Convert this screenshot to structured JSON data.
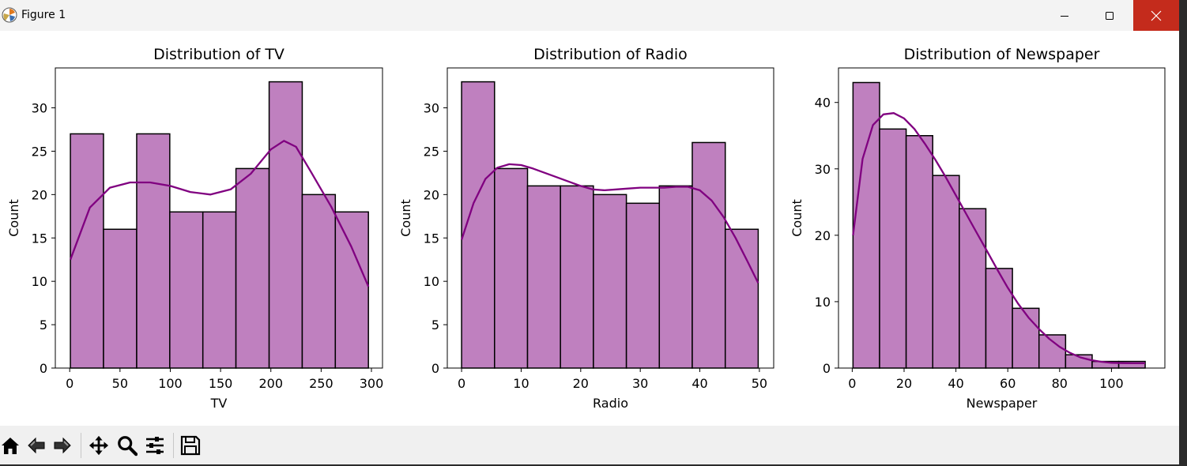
{
  "window": {
    "title": "Figure 1",
    "controls": {
      "minimize": "minimize",
      "maximize": "maximize",
      "close": "close"
    }
  },
  "toolbar": {
    "buttons": [
      "home-icon",
      "back-icon",
      "forward-icon",
      "pan-icon",
      "zoom-icon",
      "configure-subplots-icon",
      "save-icon"
    ]
  },
  "colors": {
    "bar_fill": "#bf80bf",
    "bar_edge": "#000000",
    "kde": "#800080",
    "close_button": "#c42b1c"
  },
  "chart_data": [
    {
      "type": "bar",
      "title": "Distribution of TV",
      "xlabel": "TV",
      "ylabel": "Count",
      "xlim": [
        -14.3,
        311
      ],
      "ylim": [
        0,
        34.6
      ],
      "xticks": [
        0,
        50,
        100,
        150,
        200,
        250,
        300
      ],
      "yticks": [
        0,
        5,
        10,
        15,
        20,
        25,
        30
      ],
      "bin_edges": [
        0.7,
        33.6,
        66.6,
        99.5,
        132.4,
        165.3,
        198.3,
        231.2,
        264.1,
        297.0
      ],
      "values": [
        27,
        16,
        27,
        18,
        18,
        23,
        33,
        20,
        18
      ],
      "kde": {
        "x": [
          0.7,
          20,
          40,
          60,
          80,
          100,
          120,
          140,
          160,
          180,
          200,
          213,
          225,
          240,
          260,
          280,
          297
        ],
        "y": [
          12.5,
          18.5,
          20.8,
          21.4,
          21.4,
          21.0,
          20.3,
          20.0,
          20.6,
          22.4,
          25.2,
          26.2,
          25.5,
          22.6,
          18.6,
          14.0,
          9.4
        ]
      },
      "grid": false,
      "legend": "none"
    },
    {
      "type": "bar",
      "title": "Distribution of Radio",
      "xlabel": "Radio",
      "ylabel": "Count",
      "xlim": [
        -2.4,
        52.4
      ],
      "ylim": [
        0,
        34.6
      ],
      "xticks": [
        0,
        10,
        20,
        30,
        40,
        50
      ],
      "yticks": [
        0,
        5,
        10,
        15,
        20,
        25,
        30
      ],
      "bin_edges": [
        0,
        5.53,
        11.07,
        16.6,
        22.13,
        27.67,
        33.2,
        38.73,
        44.27,
        49.8
      ],
      "values": [
        33,
        23,
        21,
        21,
        20,
        19,
        21,
        26,
        16
      ],
      "kde": {
        "x": [
          0,
          2,
          4,
          6,
          8,
          10,
          12,
          14,
          16,
          18,
          20,
          22,
          24,
          26,
          28,
          30,
          32,
          34,
          36,
          38,
          40,
          42,
          44,
          46,
          48,
          49.8
        ],
        "y": [
          14.8,
          19.0,
          21.8,
          23.1,
          23.5,
          23.4,
          23.0,
          22.5,
          22.0,
          21.5,
          21.0,
          20.6,
          20.5,
          20.6,
          20.7,
          20.8,
          20.8,
          20.8,
          20.9,
          20.9,
          20.5,
          19.3,
          17.4,
          15.0,
          12.3,
          9.8
        ]
      },
      "grid": false,
      "legend": "none"
    },
    {
      "type": "bar",
      "title": "Distribution of Newspaper",
      "xlabel": "Newspaper",
      "ylabel": "Count",
      "xlim": [
        -5.3,
        120.6
      ],
      "ylim": [
        0,
        45.2
      ],
      "xticks": [
        0,
        20,
        40,
        60,
        80,
        100
      ],
      "yticks": [
        0,
        10,
        20,
        30,
        40
      ],
      "bin_edges": [
        0.3,
        10.55,
        20.8,
        31.05,
        41.3,
        51.55,
        61.8,
        72.05,
        82.3,
        92.55,
        102.8,
        113.0
      ],
      "values": [
        43,
        36,
        35,
        29,
        24,
        15,
        9,
        5,
        2,
        1,
        1
      ],
      "kde": {
        "x": [
          0.3,
          4,
          8,
          12,
          16,
          20,
          24,
          28,
          32,
          36,
          40,
          44,
          48,
          52,
          56,
          60,
          64,
          68,
          72,
          76,
          80,
          84,
          88,
          92,
          96,
          100,
          104,
          108,
          113
        ],
        "y": [
          20,
          31.5,
          36.6,
          38.2,
          38.4,
          37.6,
          36.0,
          33.8,
          31.4,
          28.8,
          26.0,
          23.2,
          20.4,
          17.6,
          14.8,
          12.1,
          9.7,
          7.6,
          5.9,
          4.4,
          3.2,
          2.3,
          1.6,
          1.2,
          0.95,
          0.8,
          0.75,
          0.72,
          0.72
        ]
      },
      "grid": false,
      "legend": "none"
    }
  ]
}
